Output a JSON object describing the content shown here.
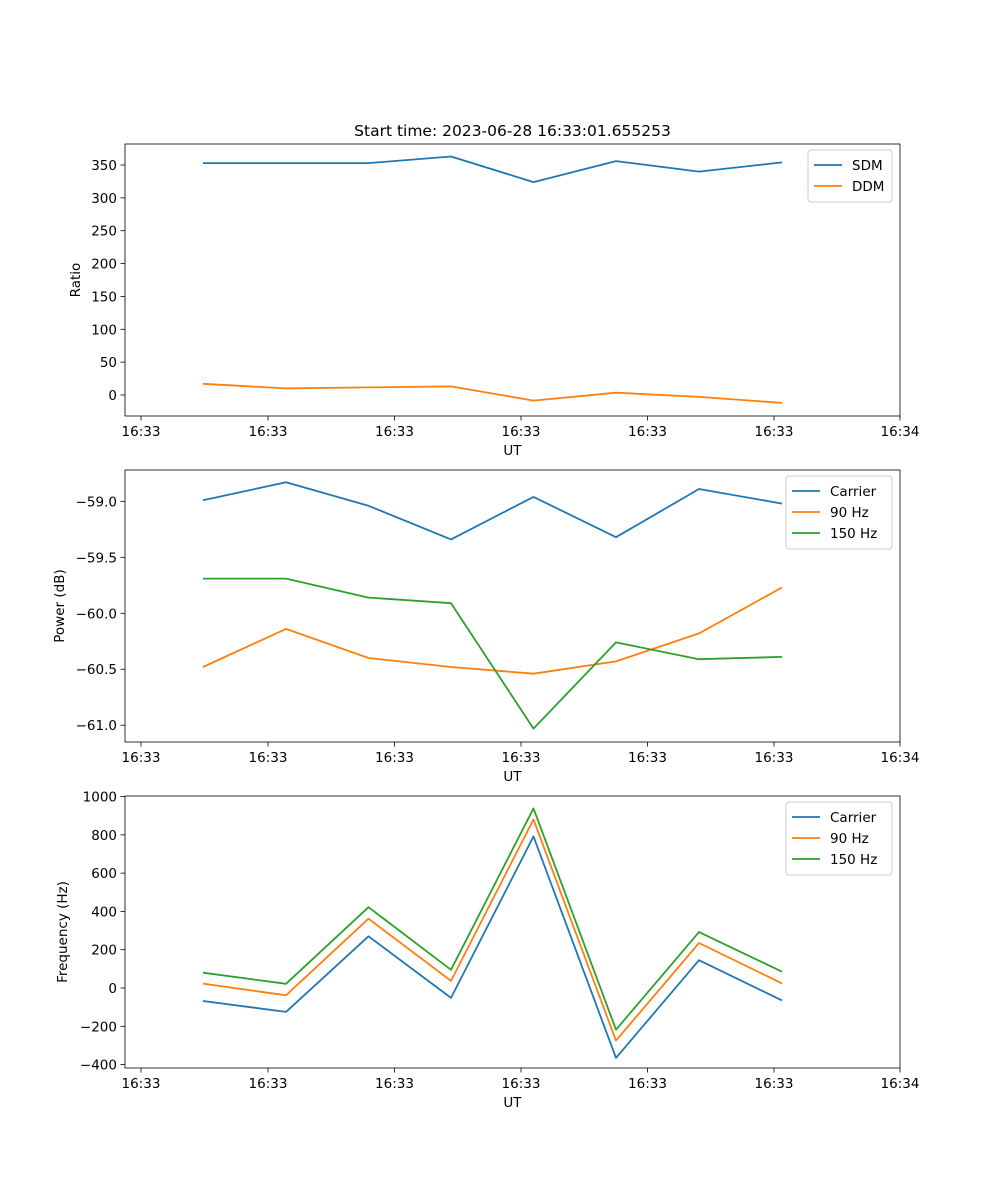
{
  "figure": {
    "title": "Start time: 2023-06-28 16:33:01.655253"
  },
  "colors": {
    "blue": "#1f77b4",
    "orange": "#ff7f0e",
    "green": "#2ca02c"
  },
  "chart_data": [
    {
      "type": "line",
      "title": "Start time: 2023-06-28 16:33:01.655253",
      "xlabel": "UT",
      "ylabel": "Ratio",
      "x_ticks": [
        "16:33",
        "16:33",
        "16:33",
        "16:33",
        "16:33",
        "16:33",
        "16:34"
      ],
      "ylim": [
        -32,
        382
      ],
      "y_ticks": [
        0,
        50,
        100,
        150,
        200,
        250,
        300,
        350
      ],
      "grid": false,
      "legend_position": "top-right",
      "series": [
        {
          "name": "SDM",
          "color": "#1f77b4",
          "values": [
            353,
            353,
            353,
            363,
            324,
            356,
            340,
            354
          ]
        },
        {
          "name": "DDM",
          "color": "#ff7f0e",
          "values": [
            17,
            10,
            11.5,
            13,
            -8.5,
            3.5,
            -3,
            -12
          ]
        }
      ]
    },
    {
      "type": "line",
      "title": "",
      "xlabel": "UT",
      "ylabel": "Power (dB)",
      "x_ticks": [
        "16:33",
        "16:33",
        "16:33",
        "16:33",
        "16:33",
        "16:33",
        "16:34"
      ],
      "ylim": [
        -61.15,
        -58.72
      ],
      "y_ticks": [
        -61.0,
        -60.5,
        -60.0,
        -59.5,
        -59.0
      ],
      "grid": false,
      "legend_position": "top-right",
      "series": [
        {
          "name": "Carrier",
          "color": "#1f77b4",
          "values": [
            -58.99,
            -58.83,
            -59.04,
            -59.34,
            -58.96,
            -59.32,
            -58.89,
            -59.02
          ]
        },
        {
          "name": "90 Hz",
          "color": "#ff7f0e",
          "values": [
            -60.48,
            -60.14,
            -60.4,
            -60.48,
            -60.54,
            -60.43,
            -60.18,
            -59.77
          ]
        },
        {
          "name": "150 Hz",
          "color": "#2ca02c",
          "values": [
            -59.69,
            -59.69,
            -59.86,
            -59.91,
            -61.03,
            -60.26,
            -60.41,
            -60.39
          ]
        }
      ]
    },
    {
      "type": "line",
      "title": "",
      "xlabel": "UT",
      "ylabel": "Frequency (Hz)",
      "x_ticks": [
        "16:33",
        "16:33",
        "16:33",
        "16:33",
        "16:33",
        "16:33",
        "16:34"
      ],
      "ylim": [
        -418,
        1003
      ],
      "y_ticks": [
        -400,
        -200,
        0,
        200,
        400,
        600,
        800,
        1000
      ],
      "grid": false,
      "legend_position": "top-right",
      "series": [
        {
          "name": "Carrier",
          "color": "#1f77b4",
          "values": [
            -68,
            -125,
            270,
            -52,
            792,
            -365,
            145,
            -65
          ]
        },
        {
          "name": "90 Hz",
          "color": "#ff7f0e",
          "values": [
            23,
            -38,
            362,
            37,
            880,
            -275,
            235,
            24
          ]
        },
        {
          "name": "150 Hz",
          "color": "#2ca02c",
          "values": [
            80,
            22,
            422,
            95,
            938,
            -218,
            292,
            85
          ]
        }
      ]
    }
  ]
}
